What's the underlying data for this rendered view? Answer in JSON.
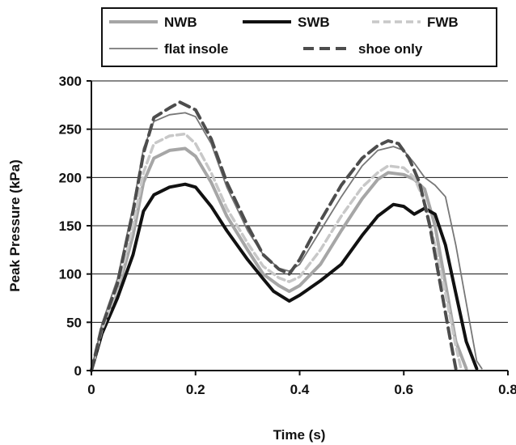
{
  "chart_data": {
    "type": "line",
    "title": "",
    "xlabel": "Time (s)",
    "ylabel": "Peak Pressure (kPa)",
    "xlim": [
      0,
      0.8
    ],
    "ylim": [
      0,
      300
    ],
    "x_ticks": [
      "0",
      "0.2",
      "0.4",
      "0.6",
      "0.8"
    ],
    "y_ticks": [
      "0",
      "50",
      "100",
      "150",
      "200",
      "250",
      "300"
    ],
    "grid": "horizontal",
    "legend_position": "top",
    "series": [
      {
        "name": "NWB",
        "color": "#a6a6a6",
        "style": "solid-thick",
        "points": [
          [
            0,
            0
          ],
          [
            0.02,
            40
          ],
          [
            0.05,
            80
          ],
          [
            0.08,
            140
          ],
          [
            0.1,
            195
          ],
          [
            0.12,
            220
          ],
          [
            0.15,
            228
          ],
          [
            0.18,
            230
          ],
          [
            0.2,
            222
          ],
          [
            0.23,
            195
          ],
          [
            0.26,
            160
          ],
          [
            0.3,
            125
          ],
          [
            0.33,
            100
          ],
          [
            0.36,
            88
          ],
          [
            0.38,
            82
          ],
          [
            0.4,
            88
          ],
          [
            0.44,
            110
          ],
          [
            0.48,
            145
          ],
          [
            0.52,
            178
          ],
          [
            0.55,
            198
          ],
          [
            0.57,
            205
          ],
          [
            0.6,
            203
          ],
          [
            0.62,
            198
          ],
          [
            0.64,
            188
          ],
          [
            0.66,
            150
          ],
          [
            0.68,
            90
          ],
          [
            0.7,
            30
          ],
          [
            0.72,
            2
          ]
        ]
      },
      {
        "name": "SWB",
        "color": "#111111",
        "style": "solid-thick",
        "points": [
          [
            0,
            0
          ],
          [
            0.02,
            38
          ],
          [
            0.05,
            75
          ],
          [
            0.08,
            120
          ],
          [
            0.1,
            165
          ],
          [
            0.12,
            182
          ],
          [
            0.15,
            190
          ],
          [
            0.18,
            193
          ],
          [
            0.2,
            190
          ],
          [
            0.23,
            170
          ],
          [
            0.26,
            145
          ],
          [
            0.3,
            115
          ],
          [
            0.33,
            95
          ],
          [
            0.35,
            82
          ],
          [
            0.38,
            72
          ],
          [
            0.4,
            78
          ],
          [
            0.44,
            93
          ],
          [
            0.48,
            110
          ],
          [
            0.52,
            140
          ],
          [
            0.55,
            160
          ],
          [
            0.58,
            172
          ],
          [
            0.6,
            170
          ],
          [
            0.62,
            162
          ],
          [
            0.64,
            168
          ],
          [
            0.66,
            162
          ],
          [
            0.68,
            130
          ],
          [
            0.7,
            80
          ],
          [
            0.72,
            30
          ],
          [
            0.74,
            2
          ]
        ]
      },
      {
        "name": "FWB",
        "color": "#c8c8c8",
        "style": "dashed",
        "points": [
          [
            0,
            0
          ],
          [
            0.02,
            42
          ],
          [
            0.05,
            85
          ],
          [
            0.08,
            150
          ],
          [
            0.1,
            205
          ],
          [
            0.12,
            235
          ],
          [
            0.15,
            243
          ],
          [
            0.18,
            245
          ],
          [
            0.2,
            235
          ],
          [
            0.23,
            205
          ],
          [
            0.26,
            168
          ],
          [
            0.3,
            132
          ],
          [
            0.33,
            108
          ],
          [
            0.36,
            96
          ],
          [
            0.38,
            92
          ],
          [
            0.4,
            97
          ],
          [
            0.44,
            125
          ],
          [
            0.48,
            160
          ],
          [
            0.52,
            190
          ],
          [
            0.55,
            205
          ],
          [
            0.57,
            212
          ],
          [
            0.6,
            210
          ],
          [
            0.62,
            200
          ],
          [
            0.64,
            175
          ],
          [
            0.66,
            130
          ],
          [
            0.68,
            80
          ],
          [
            0.7,
            25
          ],
          [
            0.71,
            2
          ]
        ]
      },
      {
        "name": "flat insole",
        "color": "#777777",
        "style": "solid-thin",
        "points": [
          [
            0,
            0
          ],
          [
            0.02,
            48
          ],
          [
            0.05,
            95
          ],
          [
            0.08,
            170
          ],
          [
            0.1,
            230
          ],
          [
            0.12,
            258
          ],
          [
            0.15,
            265
          ],
          [
            0.18,
            267
          ],
          [
            0.2,
            263
          ],
          [
            0.23,
            235
          ],
          [
            0.26,
            190
          ],
          [
            0.3,
            145
          ],
          [
            0.33,
            120
          ],
          [
            0.36,
            106
          ],
          [
            0.38,
            103
          ],
          [
            0.4,
            110
          ],
          [
            0.44,
            145
          ],
          [
            0.48,
            180
          ],
          [
            0.52,
            212
          ],
          [
            0.55,
            228
          ],
          [
            0.58,
            232
          ],
          [
            0.6,
            228
          ],
          [
            0.62,
            215
          ],
          [
            0.64,
            200
          ],
          [
            0.66,
            192
          ],
          [
            0.68,
            180
          ],
          [
            0.7,
            130
          ],
          [
            0.72,
            70
          ],
          [
            0.74,
            10
          ],
          [
            0.75,
            2
          ]
        ]
      },
      {
        "name": "shoe only",
        "color": "#4d4d4d",
        "style": "dashed-thick",
        "points": [
          [
            0,
            0
          ],
          [
            0.02,
            45
          ],
          [
            0.05,
            90
          ],
          [
            0.08,
            165
          ],
          [
            0.1,
            225
          ],
          [
            0.12,
            262
          ],
          [
            0.15,
            272
          ],
          [
            0.17,
            278
          ],
          [
            0.2,
            270
          ],
          [
            0.23,
            240
          ],
          [
            0.26,
            195
          ],
          [
            0.3,
            150
          ],
          [
            0.33,
            120
          ],
          [
            0.36,
            105
          ],
          [
            0.38,
            100
          ],
          [
            0.4,
            115
          ],
          [
            0.44,
            155
          ],
          [
            0.48,
            192
          ],
          [
            0.52,
            220
          ],
          [
            0.55,
            233
          ],
          [
            0.57,
            238
          ],
          [
            0.59,
            235
          ],
          [
            0.61,
            220
          ],
          [
            0.63,
            195
          ],
          [
            0.65,
            150
          ],
          [
            0.67,
            90
          ],
          [
            0.69,
            30
          ],
          [
            0.7,
            2
          ]
        ]
      }
    ]
  }
}
